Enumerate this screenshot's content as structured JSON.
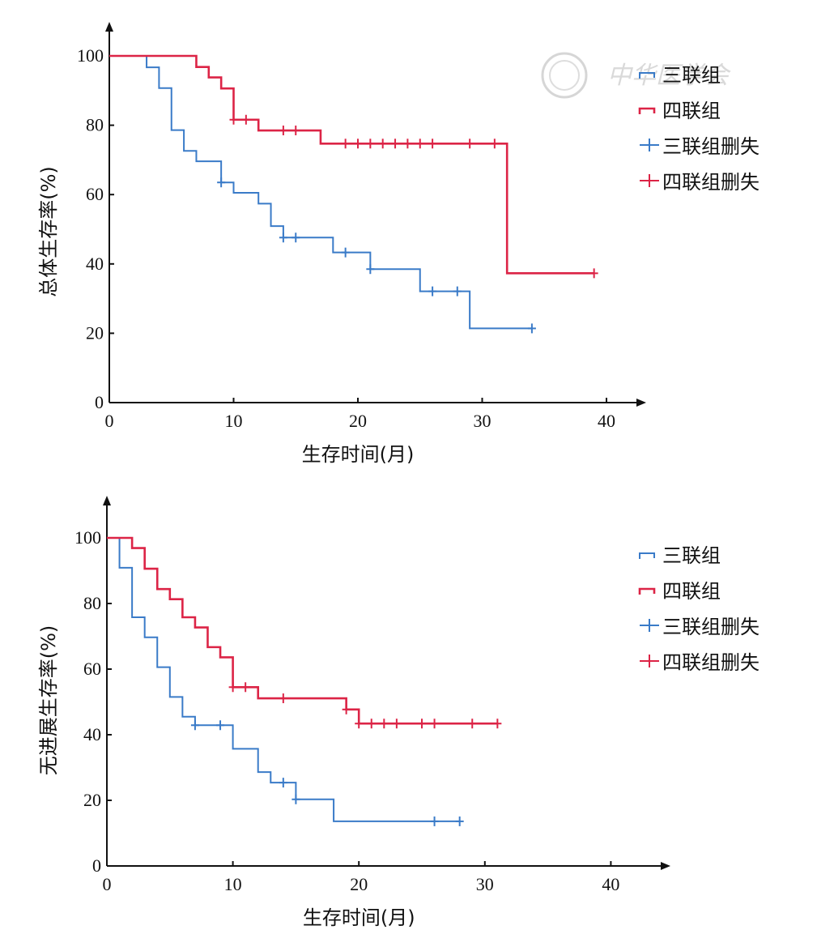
{
  "watermark": {
    "text": "中华医学会"
  },
  "chart_data": [
    {
      "type": "line",
      "subtype": "kaplan-meier",
      "ylabel": "总体生存率(%)",
      "xlabel": "生存时间(月)",
      "xlim": [
        0,
        42
      ],
      "ylim": [
        0,
        110
      ],
      "xticks": [
        0,
        10,
        20,
        30,
        40
      ],
      "yticks": [
        0,
        20,
        40,
        60,
        80,
        100
      ],
      "legend_position": "top-right",
      "legend": [
        "三联组",
        "四联组",
        "三联组删失",
        "四联组删失"
      ],
      "series": [
        {
          "name": "三联组",
          "color": "#3a7bc8",
          "steps": [
            [
              0,
              100
            ],
            [
              3,
              96.7
            ],
            [
              4,
              90.7
            ],
            [
              5,
              78.6
            ],
            [
              6,
              72.6
            ],
            [
              7,
              69.6
            ],
            [
              9,
              63.5
            ],
            [
              10,
              60.5
            ],
            [
              12,
              57.4
            ],
            [
              13,
              50.9
            ],
            [
              14,
              47.6
            ],
            [
              18,
              43.3
            ],
            [
              21,
              38.5
            ],
            [
              25,
              32.1
            ],
            [
              29,
              21.4
            ],
            [
              34,
              21.4
            ]
          ],
          "censored": [
            [
              9,
              63.5
            ],
            [
              14,
              47.6
            ],
            [
              15,
              47.6
            ],
            [
              19,
              43.3
            ],
            [
              21,
              38.5
            ],
            [
              26,
              32.1
            ],
            [
              28,
              32.1
            ],
            [
              34,
              21.4
            ]
          ]
        },
        {
          "name": "四联组",
          "color": "#dc2446",
          "steps": [
            [
              0,
              100
            ],
            [
              7,
              96.8
            ],
            [
              8,
              93.8
            ],
            [
              9,
              90.6
            ],
            [
              10,
              81.6
            ],
            [
              12,
              78.5
            ],
            [
              17,
              74.7
            ],
            [
              32,
              37.3
            ],
            [
              39,
              37.3
            ]
          ],
          "censored": [
            [
              10,
              81.6
            ],
            [
              11,
              81.6
            ],
            [
              14,
              78.5
            ],
            [
              15,
              78.5
            ],
            [
              19,
              74.7
            ],
            [
              20,
              74.7
            ],
            [
              21,
              74.7
            ],
            [
              22,
              74.7
            ],
            [
              23,
              74.7
            ],
            [
              24,
              74.7
            ],
            [
              25,
              74.7
            ],
            [
              26,
              74.7
            ],
            [
              29,
              74.7
            ],
            [
              31,
              74.7
            ],
            [
              39,
              37.3
            ]
          ]
        }
      ]
    },
    {
      "type": "line",
      "subtype": "kaplan-meier",
      "ylabel": "无进展生存率(%)",
      "xlabel": "生存时间(月)",
      "xlim": [
        0,
        44
      ],
      "ylim": [
        0,
        110
      ],
      "xticks": [
        0,
        10,
        20,
        30,
        40
      ],
      "yticks": [
        0,
        20,
        40,
        60,
        80,
        100
      ],
      "legend_position": "top-right",
      "legend": [
        "三联组",
        "四联组",
        "三联组删失",
        "四联组删失"
      ],
      "series": [
        {
          "name": "三联组",
          "color": "#3a7bc8",
          "steps": [
            [
              0,
              100
            ],
            [
              1,
              90.9
            ],
            [
              2,
              75.8
            ],
            [
              3,
              69.7
            ],
            [
              4,
              60.6
            ],
            [
              5,
              51.5
            ],
            [
              6,
              45.5
            ],
            [
              7,
              42.9
            ],
            [
              10,
              35.7
            ],
            [
              12,
              28.6
            ],
            [
              13,
              25.4
            ],
            [
              15,
              20.3
            ],
            [
              18,
              13.6
            ],
            [
              28,
              13.6
            ]
          ],
          "censored": [
            [
              7,
              42.9
            ],
            [
              9,
              42.9
            ],
            [
              14,
              25.4
            ],
            [
              15,
              20.3
            ],
            [
              26,
              13.6
            ],
            [
              28,
              13.6
            ]
          ]
        },
        {
          "name": "四联组",
          "color": "#dc2446",
          "steps": [
            [
              0,
              100
            ],
            [
              2,
              96.9
            ],
            [
              3,
              90.6
            ],
            [
              4,
              84.4
            ],
            [
              5,
              81.3
            ],
            [
              6,
              75.8
            ],
            [
              7,
              72.7
            ],
            [
              8,
              66.7
            ],
            [
              9,
              63.6
            ],
            [
              10,
              54.5
            ],
            [
              12,
              51.1
            ],
            [
              19,
              47.7
            ],
            [
              20,
              43.4
            ],
            [
              31,
              43.4
            ]
          ],
          "censored": [
            [
              10,
              54.5
            ],
            [
              11,
              54.5
            ],
            [
              14,
              51.1
            ],
            [
              19,
              47.7
            ],
            [
              20,
              43.4
            ],
            [
              21,
              43.4
            ],
            [
              22,
              43.4
            ],
            [
              23,
              43.4
            ],
            [
              25,
              43.4
            ],
            [
              26,
              43.4
            ],
            [
              29,
              43.4
            ],
            [
              31,
              43.4
            ]
          ]
        }
      ]
    }
  ]
}
